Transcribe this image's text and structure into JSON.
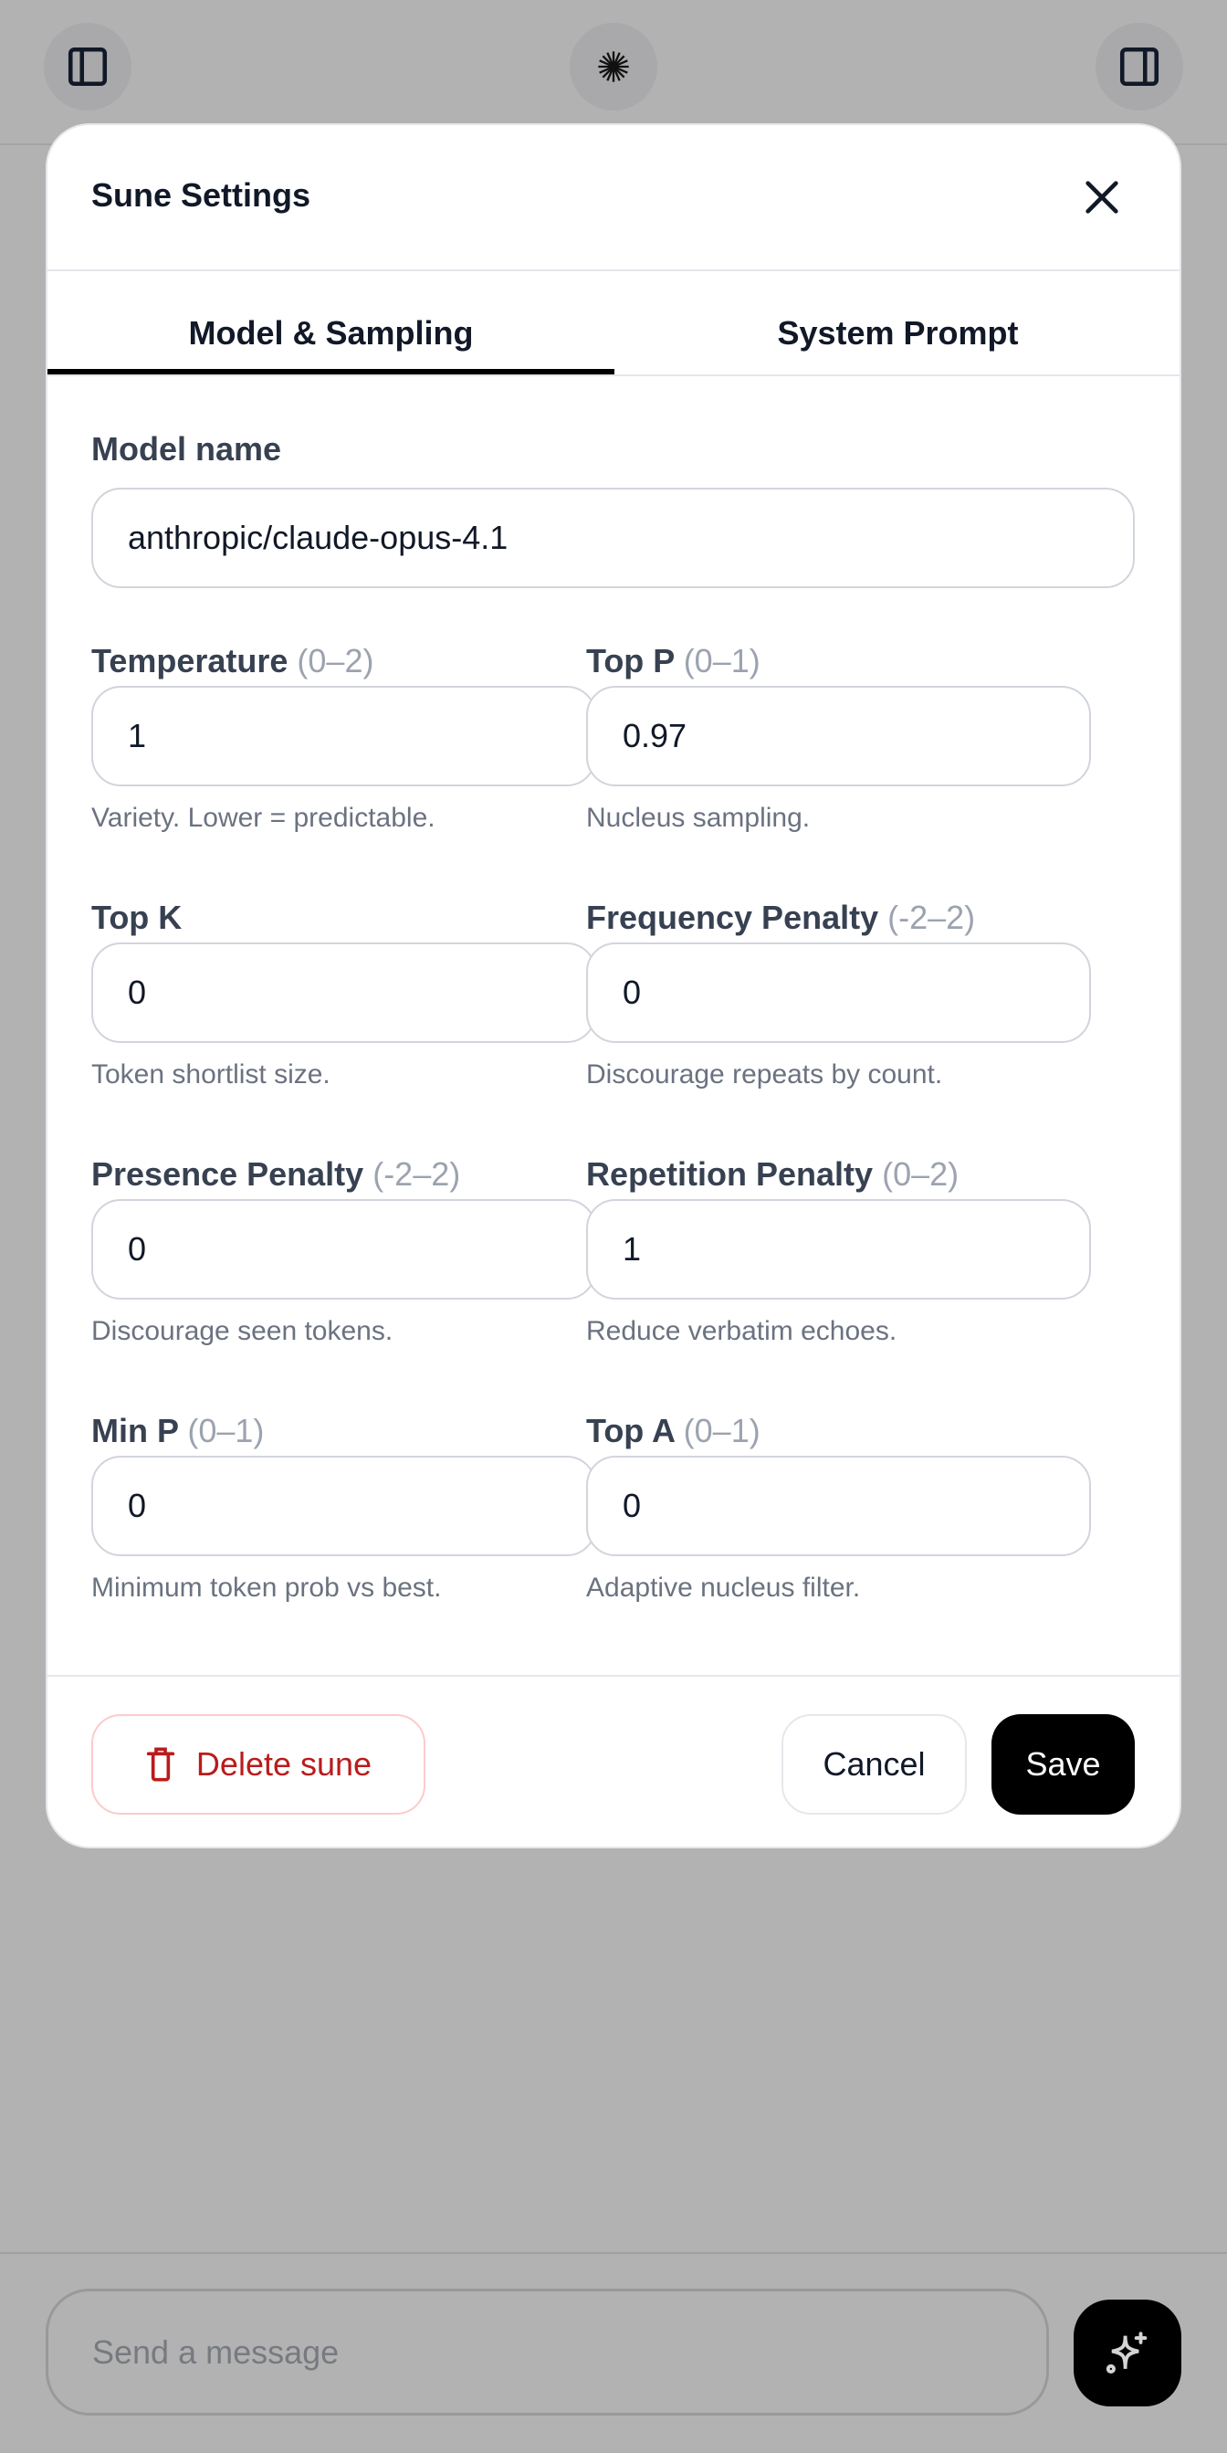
{
  "header": {
    "left_icon": "sidebar-left-icon",
    "center_icon": "sparkle-burst-icon",
    "right_icon": "sidebar-right-icon"
  },
  "modal": {
    "title": "Sune Settings",
    "close_icon": "close-icon",
    "tabs": [
      {
        "label": "Model & Sampling",
        "active": true
      },
      {
        "label": "System Prompt",
        "active": false
      }
    ],
    "model_name": {
      "label": "Model name",
      "value": "anthropic/claude-opus-4.1"
    },
    "fields": [
      {
        "label": "Temperature",
        "range": "(0–2)",
        "value": "1",
        "help": "Variety. Lower = predictable."
      },
      {
        "label": "Top P",
        "range": "(0–1)",
        "value": "0.97",
        "help": "Nucleus sampling."
      },
      {
        "label": "Top K",
        "range": "",
        "value": "0",
        "help": "Token shortlist size."
      },
      {
        "label": "Frequency Penalty",
        "range": "(-2–2)",
        "value": "0",
        "help": "Discourage repeats by count."
      },
      {
        "label": "Presence Penalty",
        "range": "(-2–2)",
        "value": "0",
        "help": "Discourage seen tokens."
      },
      {
        "label": "Repetition Penalty",
        "range": "(0–2)",
        "value": "1",
        "help": "Reduce verbatim echoes."
      },
      {
        "label": "Min P",
        "range": "(0–1)",
        "value": "0",
        "help": "Minimum token prob vs best."
      },
      {
        "label": "Top A",
        "range": "(0–1)",
        "value": "0",
        "help": "Adaptive nucleus filter."
      }
    ],
    "footer": {
      "delete_label": "Delete sune",
      "cancel_label": "Cancel",
      "save_label": "Save"
    }
  },
  "composer": {
    "placeholder": "Send a message",
    "send_icon": "sparkles-icon"
  },
  "colors": {
    "danger": "#b91c1c",
    "primary": "#000000",
    "overlay": "#b2b2b2"
  }
}
